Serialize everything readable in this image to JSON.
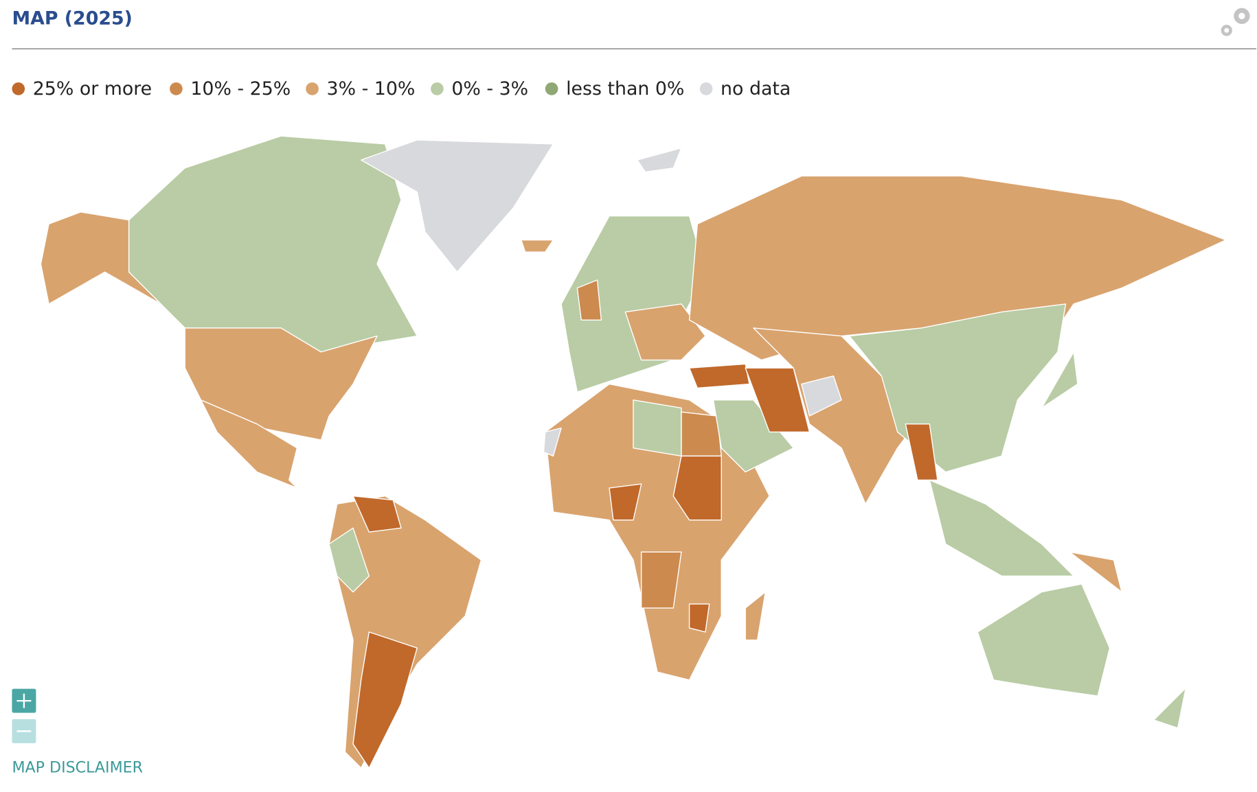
{
  "header": {
    "title": "MAP (2025)"
  },
  "legend": {
    "items": [
      {
        "label": "25% or more",
        "color": "#c0692b"
      },
      {
        "label": "10% - 25%",
        "color": "#cd8a4e"
      },
      {
        "label": "3% - 10%",
        "color": "#d9a36e"
      },
      {
        "label": "0% - 3%",
        "color": "#b9cca5"
      },
      {
        "label": "less than 0%",
        "color": "#8fa876"
      },
      {
        "label": "no data",
        "color": "#d8d9dc"
      }
    ]
  },
  "controls": {
    "disclaimer": "MAP DISCLAIMER"
  }
}
